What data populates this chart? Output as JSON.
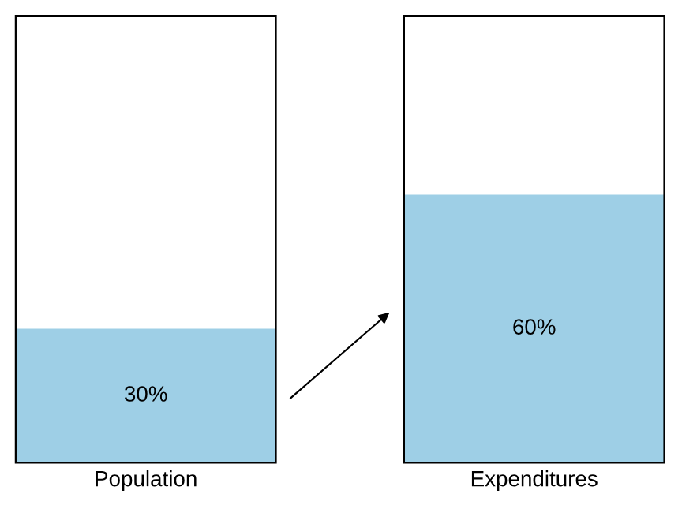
{
  "chart_data": {
    "type": "bar",
    "categories": [
      "Population",
      "Expenditures"
    ],
    "values": [
      30,
      60
    ],
    "value_labels": [
      "30%",
      "60%"
    ],
    "color": "#9ecfe6",
    "ylim": [
      0,
      100
    ],
    "tick_labels": "x",
    "grid": false
  }
}
